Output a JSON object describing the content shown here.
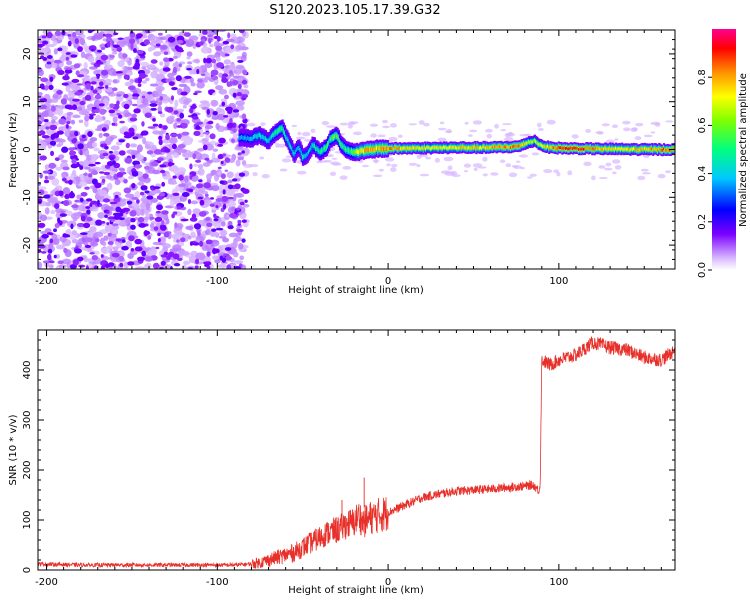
{
  "title": "S120.2023.105.17.39.G32",
  "chart_data": [
    {
      "type": "heatmap",
      "xlabel": "Height of straight line (km)",
      "ylabel": "Frequency (Hz)",
      "xlim": [
        -205,
        168
      ],
      "ylim": [
        -25,
        25
      ],
      "x_ticks": [
        -200,
        -100,
        0,
        100
      ],
      "y_ticks": [
        -20,
        -10,
        0,
        10,
        20
      ],
      "colorbar": {
        "label": "Normalized spectral amplitude",
        "range": [
          0,
          1
        ],
        "ticks": [
          0.0,
          0.2,
          0.4,
          0.6,
          0.8
        ],
        "colormap": "rainbow"
      },
      "noise_region_x": [
        -205,
        -83
      ],
      "signal_ridge": {
        "x": [
          -87,
          -80,
          -75,
          -70,
          -66,
          -62,
          -58,
          -55,
          -52,
          -50,
          -47,
          -44,
          -40,
          -36,
          -33,
          -30,
          -28,
          -25,
          -22,
          -18,
          -14,
          -10,
          -5,
          0,
          20,
          40,
          60,
          75,
          78,
          82,
          86,
          90,
          95,
          100,
          110,
          130,
          150,
          168
        ],
        "y": [
          2.5,
          2.3,
          3.0,
          1.8,
          3.5,
          4.5,
          1.5,
          -1.0,
          0.5,
          -1.5,
          -1.0,
          1.0,
          -0.5,
          0.5,
          2.5,
          3.0,
          1.5,
          0.0,
          -0.5,
          -0.5,
          -0.3,
          0.0,
          0.2,
          0.2,
          0.3,
          0.4,
          0.4,
          0.6,
          0.8,
          1.5,
          1.8,
          0.8,
          0.4,
          0.3,
          0.2,
          0.1,
          0.0,
          0.0
        ],
        "amplitude": [
          0.35,
          0.4,
          0.45,
          0.4,
          0.5,
          0.55,
          0.45,
          0.4,
          0.4,
          0.45,
          0.4,
          0.45,
          0.5,
          0.55,
          0.55,
          0.6,
          0.55,
          0.5,
          0.55,
          0.7,
          0.8,
          0.8,
          0.8,
          0.85,
          0.75,
          0.75,
          0.8,
          0.85,
          0.85,
          0.7,
          0.65,
          0.75,
          0.8,
          0.9,
          0.95,
          0.75,
          0.8,
          0.9
        ]
      }
    },
    {
      "type": "line",
      "xlabel": "Height of straight line (km)",
      "ylabel": "SNR (10 * v/v)",
      "xlim": [
        -205,
        168
      ],
      "ylim": [
        0,
        480
      ],
      "x_ticks": [
        -200,
        -100,
        0,
        100
      ],
      "y_ticks": [
        0,
        100,
        200,
        300,
        400
      ],
      "series": [
        {
          "color": "#e8302a",
          "x": [
            -205,
            -180,
            -150,
            -120,
            -100,
            -90,
            -80,
            -75,
            -70,
            -65,
            -60,
            -55,
            -50,
            -45,
            -40,
            -35,
            -30,
            -25,
            -20,
            -17,
            -15,
            -12,
            -10,
            -5,
            0,
            10,
            20,
            30,
            40,
            50,
            60,
            70,
            80,
            85,
            88,
            89,
            90,
            95,
            100,
            110,
            120,
            125,
            130,
            140,
            150,
            160,
            168
          ],
          "y": [
            12,
            10,
            10,
            10,
            10,
            10,
            12,
            15,
            20,
            25,
            30,
            35,
            45,
            55,
            65,
            75,
            80,
            90,
            95,
            110,
            95,
            100,
            105,
            110,
            115,
            130,
            145,
            152,
            158,
            160,
            162,
            165,
            168,
            170,
            160,
            165,
            420,
            410,
            420,
            430,
            455,
            450,
            445,
            440,
            425,
            420,
            440
          ]
        }
      ],
      "annotations": [
        {
          "x": -27,
          "y": 140
        },
        {
          "x": -14,
          "y": 185
        }
      ]
    }
  ]
}
